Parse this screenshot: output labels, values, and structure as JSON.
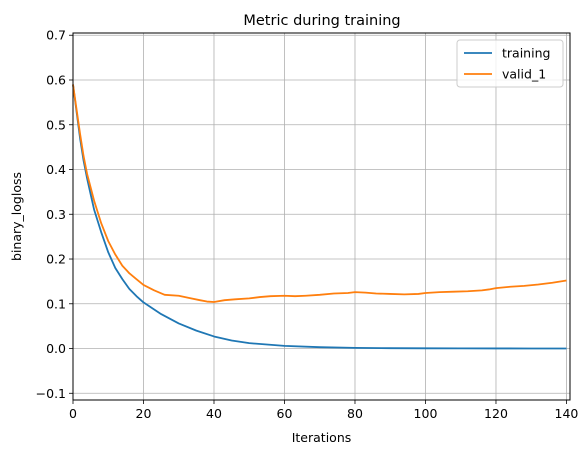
{
  "chart_data": {
    "type": "line",
    "title": "Metric during training",
    "xlabel": "Iterations",
    "ylabel": "binary_logloss",
    "xlim": [
      0,
      141
    ],
    "ylim": [
      -0.115,
      0.705
    ],
    "xticks": [
      0,
      20,
      40,
      60,
      80,
      100,
      120,
      140
    ],
    "yticks": [
      -0.1,
      0.0,
      0.1,
      0.2,
      0.3,
      0.4,
      0.5,
      0.6,
      0.7
    ],
    "xtick_labels": [
      "0",
      "20",
      "40",
      "60",
      "80",
      "100",
      "120",
      "140"
    ],
    "ytick_labels": [
      "−0.1",
      "0.0",
      "0.1",
      "0.2",
      "0.3",
      "0.4",
      "0.5",
      "0.6",
      "0.7"
    ],
    "grid": true,
    "legend_position": "top-right",
    "series": [
      {
        "name": "training",
        "color": "#1f77b4",
        "x": [
          0,
          1,
          2,
          3,
          4,
          5,
          6,
          8,
          10,
          12,
          14,
          16,
          18,
          20,
          25,
          30,
          35,
          40,
          45,
          50,
          60,
          70,
          80,
          90,
          100,
          110,
          120,
          130,
          140
        ],
        "y": [
          0.59,
          0.53,
          0.47,
          0.42,
          0.38,
          0.345,
          0.31,
          0.26,
          0.215,
          0.18,
          0.155,
          0.133,
          0.117,
          0.103,
          0.077,
          0.056,
          0.04,
          0.027,
          0.018,
          0.012,
          0.006,
          0.003,
          0.0015,
          0.0008,
          0.0005,
          0.0003,
          0.0002,
          0.0001,
          0.0001
        ]
      },
      {
        "name": "valid_1",
        "color": "#ff7f0e",
        "x": [
          0,
          1,
          2,
          3,
          4,
          5,
          6,
          8,
          10,
          12,
          14,
          16,
          18,
          20,
          23,
          26,
          30,
          33,
          36,
          38,
          40,
          43,
          46,
          50,
          53,
          56,
          60,
          63,
          66,
          70,
          74,
          78,
          80,
          83,
          86,
          90,
          94,
          98,
          100,
          104,
          108,
          112,
          116,
          118,
          120,
          124,
          128,
          132,
          136,
          140
        ],
        "y": [
          0.59,
          0.535,
          0.48,
          0.43,
          0.39,
          0.36,
          0.33,
          0.28,
          0.24,
          0.21,
          0.185,
          0.168,
          0.155,
          0.142,
          0.13,
          0.12,
          0.118,
          0.113,
          0.108,
          0.105,
          0.104,
          0.108,
          0.11,
          0.112,
          0.115,
          0.117,
          0.118,
          0.117,
          0.118,
          0.12,
          0.123,
          0.124,
          0.126,
          0.125,
          0.123,
          0.122,
          0.121,
          0.122,
          0.124,
          0.126,
          0.127,
          0.128,
          0.13,
          0.132,
          0.135,
          0.138,
          0.14,
          0.143,
          0.147,
          0.152
        ]
      }
    ]
  }
}
